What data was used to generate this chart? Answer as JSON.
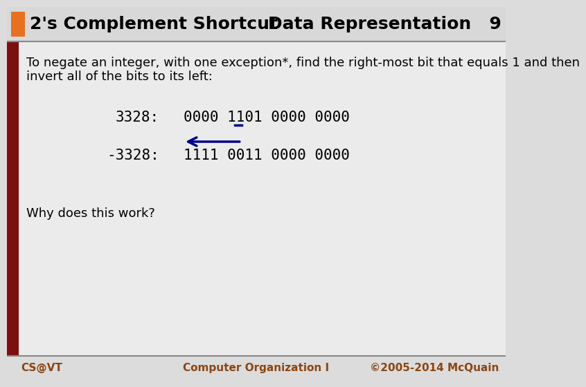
{
  "title": "2's Complement Shortcut",
  "title_right": "Data Representation   9",
  "orange_rect_color": "#E87020",
  "header_bg": "#D8D8D8",
  "content_bg": "#EBEBEB",
  "sidebar_color": "#7B1010",
  "body_bg": "#DCDCDC",
  "desc_line1": "To negate an integer, with one exception*, find the right-most bit that equals 1 and then",
  "desc_line2": "invert all of the bits to its left:",
  "row1_label": "3328:",
  "row1_value": "0000 1101 0000 0000",
  "row2_label": "-3328:",
  "row2_value": "1111 0011 0000 0000",
  "underline_color": "#00008B",
  "arrow_color": "#00008B",
  "footer_left": "CS@VT",
  "footer_center": "Computer Organization I",
  "footer_right": "©2005-2014 McQuain",
  "footer_color": "#8B4513",
  "why_text": "Why does this work?",
  "title_font_size": 18,
  "content_font_size": 13,
  "mono_font_size": 15
}
